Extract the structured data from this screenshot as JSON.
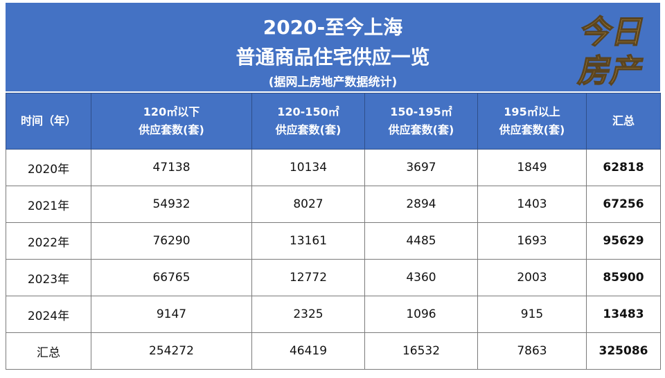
{
  "title": {
    "line1": "2020-至今上海",
    "line2": "普通商品住宅供应一览",
    "line3": "(据网上房地产数据统计)"
  },
  "logo": {
    "text_top": "今日",
    "text_bottom": "房产"
  },
  "table": {
    "headers": [
      {
        "line1": "时间（年）",
        "line2": ""
      },
      {
        "line1": "120㎡以下",
        "line2": "供应套数(套)"
      },
      {
        "line1": "120-150㎡",
        "line2": "供应套数(套)"
      },
      {
        "line1": "150-195㎡",
        "line2": "供应套数(套)"
      },
      {
        "line1": "195㎡以上",
        "line2": "供应套数(套)"
      },
      {
        "line1": "汇总",
        "line2": ""
      }
    ],
    "rows": [
      [
        "2020年",
        "47138",
        "10134",
        "3697",
        "1849",
        "62818"
      ],
      [
        "2021年",
        "54932",
        "8027",
        "2894",
        "1403",
        "67256"
      ],
      [
        "2022年",
        "76290",
        "13161",
        "4485",
        "1693",
        "95629"
      ],
      [
        "2023年",
        "66765",
        "12772",
        "4360",
        "2003",
        "85900"
      ],
      [
        "2024年",
        "9147",
        "2325",
        "1096",
        "915",
        "13483"
      ],
      [
        "汇总",
        "254272",
        "46419",
        "16532",
        "7863",
        "325086"
      ]
    ]
  },
  "colors": {
    "header_bg": "#4472c4",
    "logo_gold": "#b08a3e"
  }
}
